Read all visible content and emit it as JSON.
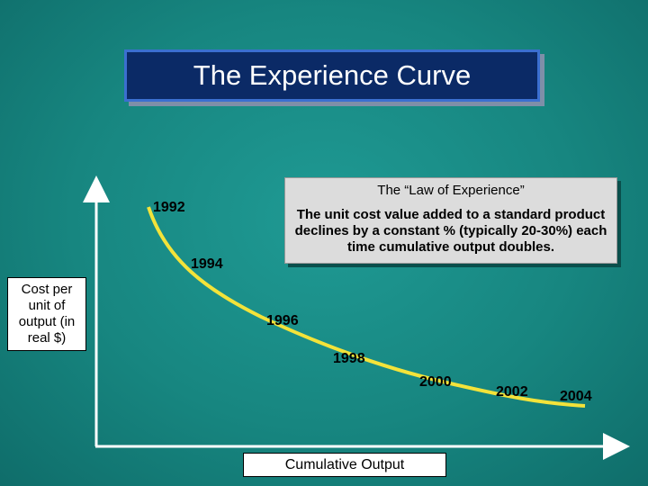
{
  "title": "The Experience Curve",
  "callout": {
    "title": "The “Law of Experience”",
    "body": "The unit cost value added to a standard product declines by a constant % (typically 20-30%) each time cumulative output doubles."
  },
  "y_axis_label": "Cost per unit of output (in real $)",
  "x_axis_label": "Cumulative Output",
  "years": [
    "1992",
    "1994",
    "1996",
    "1998",
    "2000",
    "2002",
    "2004"
  ]
}
